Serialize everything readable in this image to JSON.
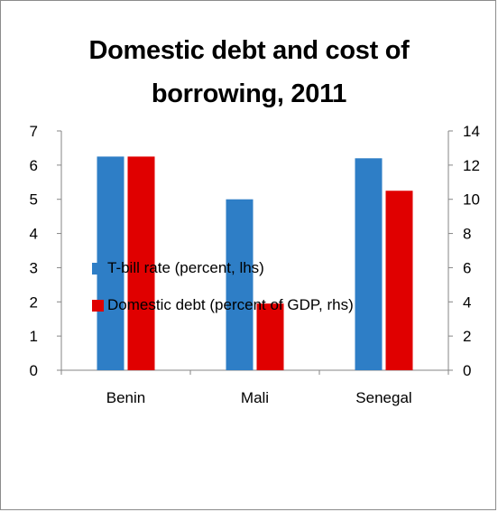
{
  "chart_data": {
    "type": "bar",
    "title": "Domestic debt and cost of\nborrowing, 2011",
    "categories": [
      "Benin",
      "Mali",
      "Senegal"
    ],
    "series": [
      {
        "name": "T-bill rate (percent, lhs)",
        "axis": "left",
        "color": "#2e7ec6",
        "values": [
          6.25,
          5.0,
          6.2
        ]
      },
      {
        "name": "Domestic debt (percent of GDP, rhs)",
        "axis": "right",
        "color": "#e00000",
        "values": [
          12.5,
          3.9,
          10.5
        ]
      }
    ],
    "y_left": {
      "lim": [
        0,
        7
      ],
      "ticks": [
        "0",
        "1",
        "2",
        "3",
        "4",
        "5",
        "6",
        "7"
      ]
    },
    "y_right": {
      "lim": [
        0,
        14
      ],
      "ticks": [
        "0",
        "2",
        "4",
        "6",
        "8",
        "10",
        "12",
        "14"
      ]
    },
    "grid": false,
    "legend_position": "bottom"
  }
}
